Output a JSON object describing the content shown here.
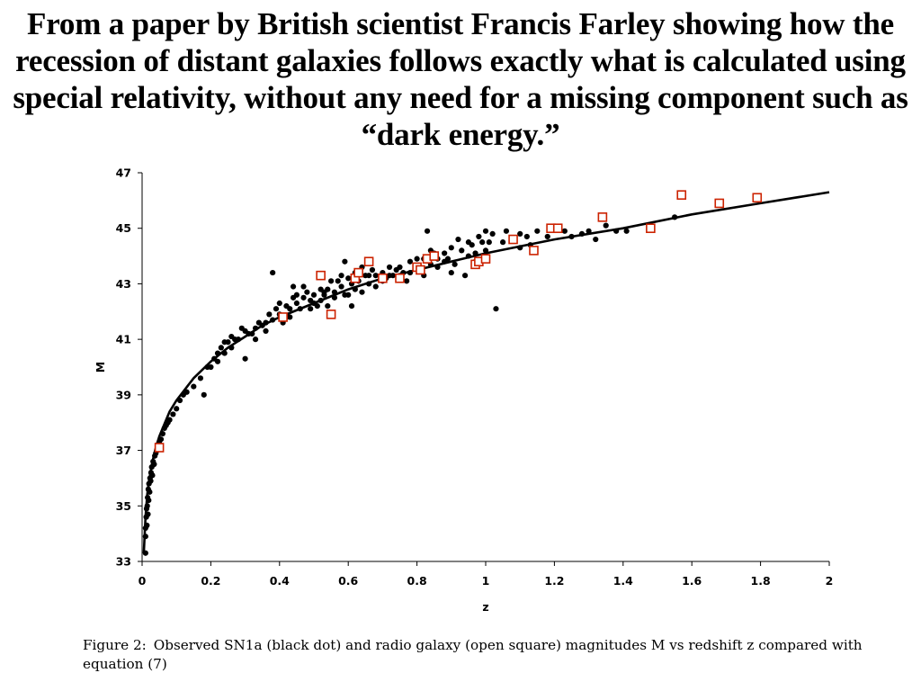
{
  "headline": "From a paper by British scientist Francis Farley showing how the recession of distant galaxies follows exactly what is calculated using special relativity, without any need for a missing component such as “dark energy.”",
  "caption": {
    "figure_label": "Figure 2:",
    "text": "Observed SN1a (black dot) and radio galaxy (open square) magnitudes M vs redshift z compared with equation (7)"
  },
  "colors": {
    "dots": "#000000",
    "squares": "#cc2200",
    "curve": "#000000",
    "axis": "#000000"
  },
  "chart_data": {
    "type": "scatter",
    "xlabel": "z",
    "ylabel": "M",
    "xlim": [
      0,
      2
    ],
    "ylim": [
      33,
      47
    ],
    "x_ticks": [
      0,
      0.2,
      0.4,
      0.6,
      0.8,
      1,
      1.2,
      1.4,
      1.6,
      1.8,
      2
    ],
    "x_tick_labels": [
      "0",
      "0.2",
      "0.4",
      "0.6",
      "0.8",
      "1",
      "1.2",
      "1.4",
      "1.6",
      "1.8",
      "2"
    ],
    "y_ticks": [
      33,
      35,
      37,
      39,
      41,
      43,
      45,
      47
    ],
    "y_tick_labels": [
      "33",
      "35",
      "37",
      "39",
      "41",
      "43",
      "45",
      "47"
    ],
    "grid": false,
    "series": [
      {
        "kind": "scatter",
        "marker": "dot",
        "points": [
          [
            0.01,
            33.3
          ],
          [
            0.01,
            33.9
          ],
          [
            0.01,
            34.2
          ],
          [
            0.012,
            34.6
          ],
          [
            0.013,
            34.9
          ],
          [
            0.014,
            34.3
          ],
          [
            0.015,
            35.0
          ],
          [
            0.016,
            35.3
          ],
          [
            0.017,
            34.7
          ],
          [
            0.018,
            35.6
          ],
          [
            0.019,
            35.2
          ],
          [
            0.02,
            35.8
          ],
          [
            0.022,
            35.5
          ],
          [
            0.023,
            36.0
          ],
          [
            0.025,
            35.9
          ],
          [
            0.026,
            36.2
          ],
          [
            0.028,
            36.4
          ],
          [
            0.03,
            36.1
          ],
          [
            0.032,
            36.6
          ],
          [
            0.035,
            36.5
          ],
          [
            0.037,
            36.8
          ],
          [
            0.04,
            36.9
          ],
          [
            0.043,
            37.0
          ],
          [
            0.045,
            37.2
          ],
          [
            0.05,
            37.3
          ],
          [
            0.055,
            37.4
          ],
          [
            0.06,
            37.6
          ],
          [
            0.065,
            37.8
          ],
          [
            0.07,
            37.9
          ],
          [
            0.075,
            38.0
          ],
          [
            0.08,
            38.1
          ],
          [
            0.09,
            38.3
          ],
          [
            0.1,
            38.5
          ],
          [
            0.11,
            38.8
          ],
          [
            0.12,
            39.0
          ],
          [
            0.13,
            39.1
          ],
          [
            0.15,
            39.3
          ],
          [
            0.17,
            39.6
          ],
          [
            0.19,
            40.0
          ],
          [
            0.21,
            40.3
          ],
          [
            0.22,
            40.5
          ],
          [
            0.23,
            40.7
          ],
          [
            0.24,
            40.9
          ],
          [
            0.25,
            40.9
          ],
          [
            0.26,
            40.7
          ],
          [
            0.27,
            41.0
          ],
          [
            0.28,
            41.0
          ],
          [
            0.29,
            41.4
          ],
          [
            0.3,
            40.3
          ],
          [
            0.31,
            41.2
          ],
          [
            0.32,
            41.2
          ],
          [
            0.33,
            41.4
          ],
          [
            0.34,
            41.6
          ],
          [
            0.35,
            41.5
          ],
          [
            0.36,
            41.6
          ],
          [
            0.37,
            41.9
          ],
          [
            0.38,
            41.7
          ],
          [
            0.38,
            43.4
          ],
          [
            0.39,
            42.1
          ],
          [
            0.4,
            41.9
          ],
          [
            0.41,
            41.6
          ],
          [
            0.42,
            41.8
          ],
          [
            0.42,
            42.2
          ],
          [
            0.43,
            42.1
          ],
          [
            0.44,
            42.5
          ],
          [
            0.45,
            42.3
          ],
          [
            0.46,
            42.1
          ],
          [
            0.47,
            42.5
          ],
          [
            0.48,
            42.7
          ],
          [
            0.49,
            42.4
          ],
          [
            0.5,
            42.6
          ],
          [
            0.51,
            42.2
          ],
          [
            0.52,
            42.8
          ],
          [
            0.53,
            42.6
          ],
          [
            0.54,
            42.8
          ],
          [
            0.55,
            43.1
          ],
          [
            0.56,
            42.7
          ],
          [
            0.57,
            43.1
          ],
          [
            0.58,
            42.9
          ],
          [
            0.59,
            42.6
          ],
          [
            0.6,
            43.2
          ],
          [
            0.61,
            43.0
          ],
          [
            0.62,
            43.4
          ],
          [
            0.63,
            43.1
          ],
          [
            0.64,
            42.7
          ],
          [
            0.65,
            43.3
          ],
          [
            0.66,
            43.0
          ],
          [
            0.67,
            43.5
          ],
          [
            0.68,
            43.3
          ],
          [
            0.7,
            43.4
          ],
          [
            0.71,
            43.2
          ],
          [
            0.72,
            43.6
          ],
          [
            0.73,
            43.3
          ],
          [
            0.75,
            43.6
          ],
          [
            0.76,
            43.4
          ],
          [
            0.78,
            43.8
          ],
          [
            0.8,
            43.6
          ],
          [
            0.82,
            43.9
          ],
          [
            0.84,
            43.7
          ],
          [
            0.85,
            44.1
          ],
          [
            0.86,
            43.6
          ],
          [
            0.88,
            44.1
          ],
          [
            0.89,
            43.9
          ],
          [
            0.9,
            44.3
          ],
          [
            0.91,
            43.7
          ],
          [
            0.93,
            44.2
          ],
          [
            0.94,
            43.3
          ],
          [
            0.95,
            44.0
          ],
          [
            0.96,
            44.4
          ],
          [
            0.97,
            44.1
          ],
          [
            0.98,
            44.7
          ],
          [
            1.0,
            44.2
          ],
          [
            1.01,
            44.5
          ],
          [
            1.02,
            44.8
          ],
          [
            1.03,
            42.1
          ],
          [
            1.05,
            44.5
          ],
          [
            1.08,
            44.6
          ],
          [
            1.1,
            44.8
          ],
          [
            1.13,
            44.4
          ],
          [
            1.15,
            44.9
          ],
          [
            1.2,
            45.0
          ],
          [
            1.23,
            44.9
          ],
          [
            1.25,
            44.7
          ],
          [
            1.3,
            44.9
          ],
          [
            1.32,
            44.6
          ],
          [
            1.35,
            45.1
          ],
          [
            1.38,
            44.9
          ],
          [
            1.55,
            45.4
          ],
          [
            0.18,
            39.0
          ],
          [
            0.2,
            40.0
          ],
          [
            0.22,
            40.2
          ],
          [
            0.24,
            40.5
          ],
          [
            0.26,
            41.1
          ],
          [
            0.3,
            41.3
          ],
          [
            0.33,
            41.0
          ],
          [
            0.36,
            41.3
          ],
          [
            0.4,
            42.3
          ],
          [
            0.43,
            41.8
          ],
          [
            0.45,
            42.6
          ],
          [
            0.47,
            42.9
          ],
          [
            0.5,
            42.3
          ],
          [
            0.52,
            42.4
          ],
          [
            0.54,
            42.2
          ],
          [
            0.56,
            42.5
          ],
          [
            0.58,
            43.3
          ],
          [
            0.6,
            42.6
          ],
          [
            0.62,
            42.8
          ],
          [
            0.64,
            43.6
          ],
          [
            0.66,
            43.3
          ],
          [
            0.68,
            42.9
          ],
          [
            0.7,
            43.1
          ],
          [
            0.72,
            43.3
          ],
          [
            0.74,
            43.5
          ],
          [
            0.78,
            43.4
          ],
          [
            0.8,
            43.9
          ],
          [
            0.82,
            43.3
          ],
          [
            0.84,
            44.2
          ],
          [
            0.86,
            43.9
          ],
          [
            0.88,
            43.8
          ],
          [
            0.9,
            43.4
          ],
          [
            0.92,
            44.6
          ],
          [
            0.95,
            44.5
          ],
          [
            0.97,
            43.8
          ],
          [
            0.99,
            44.5
          ],
          [
            1.0,
            44.9
          ],
          [
            1.06,
            44.9
          ],
          [
            1.1,
            44.3
          ],
          [
            1.12,
            44.7
          ],
          [
            1.18,
            44.7
          ],
          [
            1.28,
            44.8
          ],
          [
            1.41,
            44.9
          ],
          [
            0.59,
            43.8
          ],
          [
            0.61,
            42.2
          ],
          [
            0.77,
            43.1
          ],
          [
            0.83,
            44.9
          ],
          [
            0.44,
            42.9
          ],
          [
            0.49,
            42.1
          ],
          [
            0.53,
            42.7
          ]
        ]
      },
      {
        "kind": "scatter",
        "marker": "open-square",
        "points": [
          [
            0.05,
            37.1
          ],
          [
            0.41,
            41.8
          ],
          [
            0.52,
            43.3
          ],
          [
            0.55,
            41.9
          ],
          [
            0.62,
            43.2
          ],
          [
            0.63,
            43.4
          ],
          [
            0.66,
            43.8
          ],
          [
            0.7,
            43.2
          ],
          [
            0.75,
            43.2
          ],
          [
            0.8,
            43.6
          ],
          [
            0.81,
            43.5
          ],
          [
            0.83,
            43.9
          ],
          [
            0.85,
            44.0
          ],
          [
            0.97,
            43.7
          ],
          [
            0.98,
            43.8
          ],
          [
            1.0,
            43.9
          ],
          [
            1.08,
            44.6
          ],
          [
            1.14,
            44.2
          ],
          [
            1.19,
            45.0
          ],
          [
            1.21,
            45.0
          ],
          [
            1.34,
            45.4
          ],
          [
            1.48,
            45.0
          ],
          [
            1.57,
            46.2
          ],
          [
            1.68,
            45.9
          ],
          [
            1.79,
            46.1
          ]
        ]
      },
      {
        "kind": "line",
        "marker": "curve",
        "points": [
          [
            0.005,
            33.3
          ],
          [
            0.01,
            34.6
          ],
          [
            0.015,
            35.4
          ],
          [
            0.02,
            35.9
          ],
          [
            0.03,
            36.6
          ],
          [
            0.04,
            37.1
          ],
          [
            0.05,
            37.5
          ],
          [
            0.06,
            37.8
          ],
          [
            0.08,
            38.4
          ],
          [
            0.1,
            38.8
          ],
          [
            0.15,
            39.6
          ],
          [
            0.2,
            40.2
          ],
          [
            0.25,
            40.7
          ],
          [
            0.3,
            41.1
          ],
          [
            0.35,
            41.5
          ],
          [
            0.4,
            41.8
          ],
          [
            0.5,
            42.3
          ],
          [
            0.6,
            42.8
          ],
          [
            0.7,
            43.2
          ],
          [
            0.8,
            43.5
          ],
          [
            0.9,
            43.8
          ],
          [
            1.0,
            44.1
          ],
          [
            1.2,
            44.6
          ],
          [
            1.4,
            45.0
          ],
          [
            1.6,
            45.5
          ],
          [
            1.8,
            45.9
          ],
          [
            2.0,
            46.3
          ]
        ]
      }
    ]
  }
}
